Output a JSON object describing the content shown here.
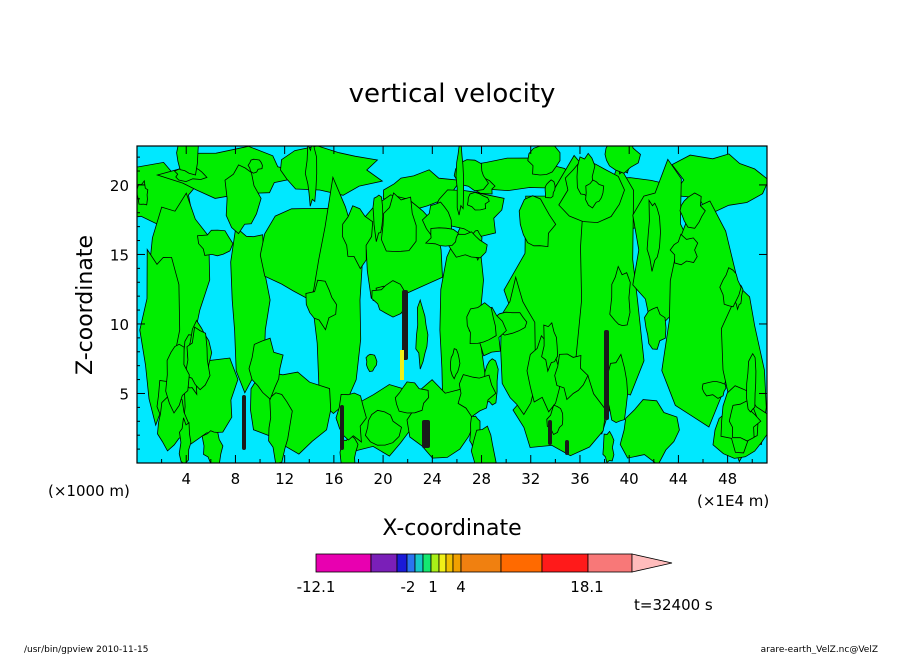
{
  "chart_data": {
    "type": "heatmap",
    "title": "vertical velocity",
    "xlabel": "X-coordinate",
    "ylabel": "Z-coordinate",
    "x_unit_left": "(×1000 m)",
    "x_unit_right": "(×1E4 m)",
    "xlim": [
      0,
      51.2
    ],
    "ylim": [
      0,
      22.8
    ],
    "x_ticks": [
      "4",
      "8",
      "12",
      "16",
      "20",
      "24",
      "28",
      "32",
      "36",
      "40",
      "44",
      "48"
    ],
    "y_ticks": [
      "5",
      "10",
      "15",
      "20"
    ],
    "colorbar": {
      "labels": [
        "-12.1",
        "-2",
        "1",
        "4",
        "18.1"
      ],
      "colors": [
        "#e800b0",
        "#7a1fb8",
        "#1a1ad8",
        "#2b74f0",
        "#16c8c8",
        "#14e870",
        "#a8f018",
        "#f0f018",
        "#f0c000",
        "#f0a000",
        "#f08010",
        "#ff6a00",
        "#ff1a1a",
        "#f87878",
        "#ffbcbc"
      ]
    },
    "time_label": "t=32400 s",
    "footer_left": "/usr/bin/gpview   2010-11-15",
    "footer_right": "arare-earth_VelZ.nc@VelZ",
    "field_colors": {
      "background": "#00e8ff",
      "positive": "#00ee00",
      "extreme": "#1a1a1a",
      "yellow": "#f0f018"
    }
  }
}
